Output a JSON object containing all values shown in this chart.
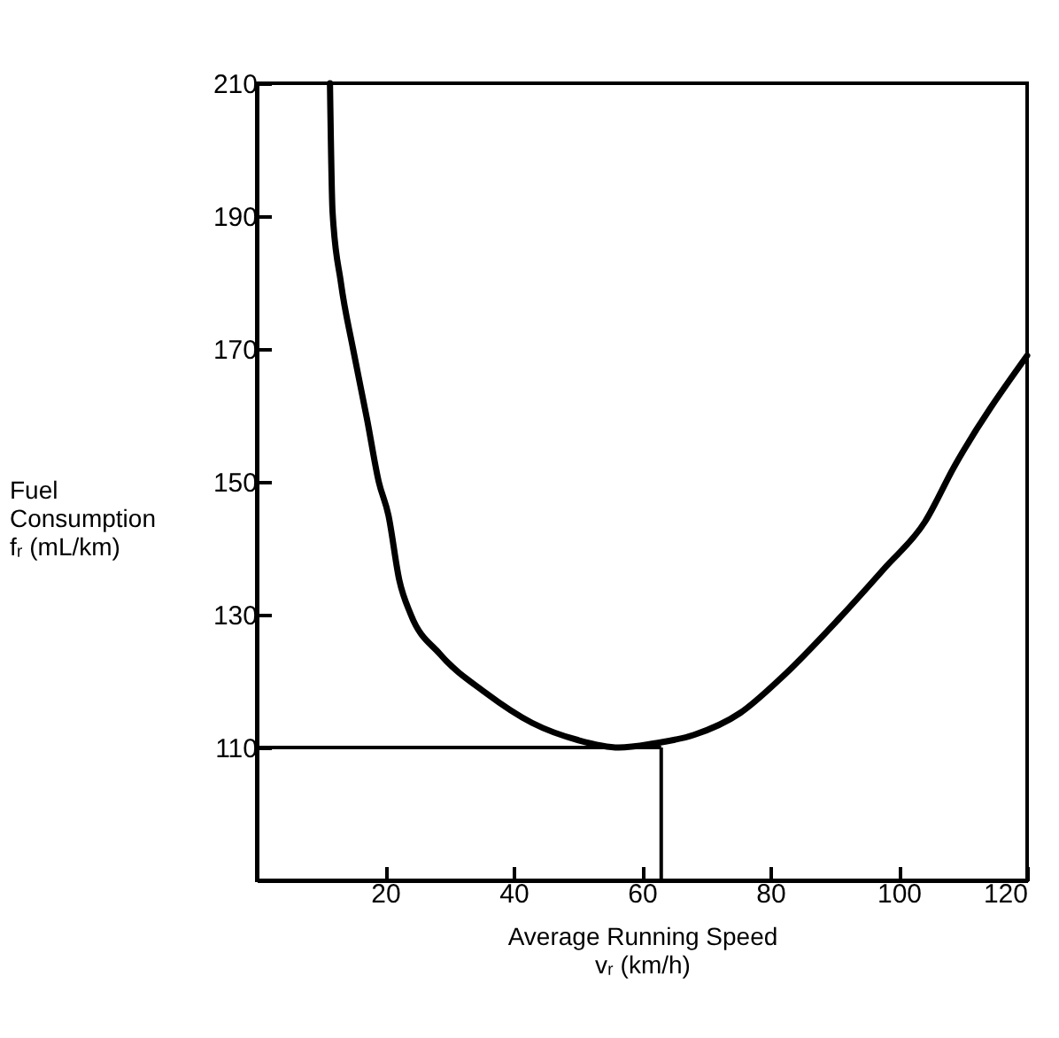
{
  "chart_data": {
    "type": "line",
    "xlabel": "Average Running Speed vᵣ (km/h)",
    "ylabel": "Fuel Consumption fᵣ (mL/km)",
    "x": [
      11.4,
      11.8,
      13.1,
      15,
      17.2,
      19,
      20.5,
      22.2,
      24,
      28.5,
      35.7,
      42.9,
      50.1,
      56.4,
      61.8,
      68.1,
      75.3,
      81.6,
      90.6,
      97.8,
      104.1,
      108.6,
      120
    ],
    "series": [
      {
        "color": "#000000",
        "values": [
          210,
          190.7,
          180,
          170,
          159.3,
          150,
          145,
          135.2,
          130,
          124.1,
          118.2,
          113.7,
          111.1,
          110,
          110.6,
          111.9,
          115.2,
          120.4,
          129.3,
          137,
          144,
          152.2,
          169
        ]
      }
    ],
    "xlim": [
      0,
      120
    ],
    "xticks": [
      20,
      40,
      60,
      80,
      100,
      120
    ],
    "ylim": [
      90,
      210
    ],
    "yticks": [
      110,
      130,
      150,
      170,
      190,
      210
    ],
    "ref_lines": [
      {
        "axis": "y",
        "value": 110
      },
      {
        "axis": "x",
        "value": 63
      }
    ],
    "grid": false,
    "marker": "none",
    "line_style": "solid"
  }
}
